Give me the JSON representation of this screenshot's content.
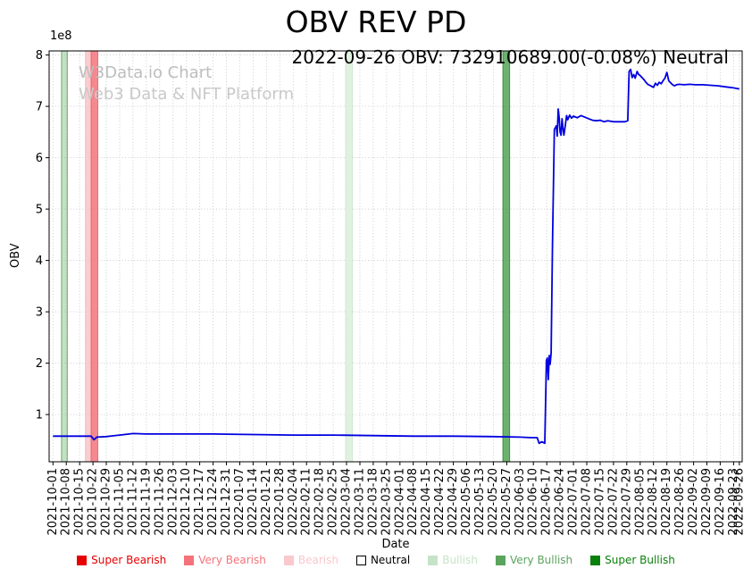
{
  "figure": {
    "title": "OBV REV PD",
    "annotation": "2022-09-26 OBV: 732910689.00(-0.08%) Neutral",
    "watermark_line1": "W3Data.io Chart",
    "watermark_line2": "Web3 Data & NFT Platform",
    "xlabel": "Date",
    "ylabel": "OBV",
    "y_offset_text": "1e8"
  },
  "chart_data": {
    "type": "line",
    "title": "OBV REV PD",
    "xlabel": "Date",
    "ylabel": "OBV",
    "y_scale_factor": "1e8",
    "grid": "dotted",
    "legend_position": "bottom",
    "ylim_e8": [
      0.08,
      8.08
    ],
    "y_ticks_e8": [
      1,
      2,
      3,
      4,
      5,
      6,
      7,
      8
    ],
    "x_origin_date": "2021-10-01",
    "xlim_days": [
      -2,
      361.5
    ],
    "x_tick_labels": [
      "2021-10-01",
      "2021-10-08",
      "2021-10-15",
      "2021-10-22",
      "2021-10-29",
      "2021-11-05",
      "2021-11-12",
      "2021-11-19",
      "2021-11-26",
      "2021-12-03",
      "2021-12-10",
      "2021-12-17",
      "2021-12-24",
      "2021-12-31",
      "2022-01-07",
      "2022-01-14",
      "2022-01-21",
      "2022-01-28",
      "2022-02-04",
      "2022-02-11",
      "2022-02-18",
      "2022-02-25",
      "2022-03-04",
      "2022-03-11",
      "2022-03-18",
      "2022-03-25",
      "2022-04-01",
      "2022-04-08",
      "2022-04-15",
      "2022-04-22",
      "2022-04-29",
      "2022-05-06",
      "2022-05-13",
      "2022-05-20",
      "2022-05-27",
      "2022-06-03",
      "2022-06-10",
      "2022-06-17",
      "2022-06-24",
      "2022-07-01",
      "2022-07-08",
      "2022-07-15",
      "2022-07-22",
      "2022-07-29",
      "2022-08-05",
      "2022-08-12",
      "2022-08-19",
      "2022-08-26",
      "2022-09-02",
      "2022-09-09",
      "2022-09-16",
      "2022-09-23",
      "2022-09-26"
    ],
    "x_tick_days": [
      0,
      7,
      14,
      21,
      28,
      35,
      42,
      49,
      56,
      63,
      70,
      77,
      84,
      91,
      98,
      105,
      112,
      119,
      126,
      133,
      140,
      147,
      154,
      161,
      168,
      175,
      182,
      189,
      196,
      203,
      210,
      217,
      224,
      231,
      238,
      245,
      252,
      259,
      266,
      273,
      280,
      287,
      294,
      301,
      308,
      315,
      322,
      329,
      336,
      343,
      350,
      357,
      360
    ],
    "series": [
      {
        "name": "OBV",
        "color": "#0000e0",
        "points_day_value_e8": [
          [
            0,
            0.58
          ],
          [
            10,
            0.58
          ],
          [
            20,
            0.58
          ],
          [
            21.5,
            0.51
          ],
          [
            23,
            0.56
          ],
          [
            28,
            0.57
          ],
          [
            35,
            0.6
          ],
          [
            42,
            0.63
          ],
          [
            49,
            0.62
          ],
          [
            63,
            0.62
          ],
          [
            84,
            0.62
          ],
          [
            105,
            0.61
          ],
          [
            126,
            0.6
          ],
          [
            147,
            0.6
          ],
          [
            168,
            0.59
          ],
          [
            189,
            0.58
          ],
          [
            210,
            0.58
          ],
          [
            231,
            0.57
          ],
          [
            245,
            0.56
          ],
          [
            251,
            0.55
          ],
          [
            254,
            0.55
          ],
          [
            255,
            0.44
          ],
          [
            256.5,
            0.47
          ],
          [
            258,
            0.44
          ],
          [
            258.8,
            2.05
          ],
          [
            259.3,
            2.1
          ],
          [
            259.8,
            1.68
          ],
          [
            260.3,
            2.15
          ],
          [
            260.8,
            1.98
          ],
          [
            261.3,
            2.2
          ],
          [
            262,
            4.3
          ],
          [
            263,
            6.55
          ],
          [
            264,
            6.62
          ],
          [
            264.5,
            6.42
          ],
          [
            265,
            6.95
          ],
          [
            265.5,
            6.78
          ],
          [
            266,
            6.5
          ],
          [
            266.5,
            6.44
          ],
          [
            267,
            6.76
          ],
          [
            267.5,
            6.58
          ],
          [
            268,
            6.44
          ],
          [
            268.7,
            6.62
          ],
          [
            269.4,
            6.82
          ],
          [
            270,
            6.74
          ],
          [
            271,
            6.83
          ],
          [
            272,
            6.77
          ],
          [
            273,
            6.81
          ],
          [
            275,
            6.78
          ],
          [
            277,
            6.82
          ],
          [
            279,
            6.79
          ],
          [
            281,
            6.76
          ],
          [
            283,
            6.73
          ],
          [
            285,
            6.72
          ],
          [
            287,
            6.73
          ],
          [
            289,
            6.7
          ],
          [
            291,
            6.72
          ],
          [
            294,
            6.7
          ],
          [
            297,
            6.7
          ],
          [
            300,
            6.7
          ],
          [
            301.5,
            6.72
          ],
          [
            302.2,
            7.68
          ],
          [
            303,
            7.72
          ],
          [
            303.8,
            7.56
          ],
          [
            304.6,
            7.62
          ],
          [
            305.4,
            7.55
          ],
          [
            306.4,
            7.68
          ],
          [
            307.2,
            7.62
          ],
          [
            308,
            7.6
          ],
          [
            309,
            7.56
          ],
          [
            310,
            7.52
          ],
          [
            311,
            7.47
          ],
          [
            312,
            7.43
          ],
          [
            313,
            7.41
          ],
          [
            314,
            7.39
          ],
          [
            315,
            7.37
          ],
          [
            316,
            7.45
          ],
          [
            317,
            7.41
          ],
          [
            318,
            7.47
          ],
          [
            319,
            7.44
          ],
          [
            320,
            7.5
          ],
          [
            321,
            7.55
          ],
          [
            322,
            7.66
          ],
          [
            323,
            7.5
          ],
          [
            324,
            7.46
          ],
          [
            325,
            7.42
          ],
          [
            326,
            7.4
          ],
          [
            327,
            7.42
          ],
          [
            328.5,
            7.43
          ],
          [
            331,
            7.42
          ],
          [
            334,
            7.43
          ],
          [
            337,
            7.42
          ],
          [
            341,
            7.42
          ],
          [
            345,
            7.41
          ],
          [
            349,
            7.4
          ],
          [
            353,
            7.38
          ],
          [
            357,
            7.36
          ],
          [
            360,
            7.34
          ]
        ]
      }
    ],
    "bands": [
      {
        "signal": "Bullish",
        "start_day": 4.5,
        "end_day": 7.5,
        "fill": "#8cc48c",
        "opacity": 0.5,
        "edge": "#5ca05c"
      },
      {
        "signal": "Bearish",
        "start_day": 17,
        "end_day": 20,
        "fill": "#f6bcc0",
        "opacity": 0.75,
        "edge": "#f6bcc0"
      },
      {
        "signal": "Very Bearish",
        "start_day": 20,
        "end_day": 23.5,
        "fill": "#f3747b",
        "opacity": 0.85,
        "edge": "#ef5f67"
      },
      {
        "signal": "Bullish",
        "start_day": 153.5,
        "end_day": 157,
        "fill": "#dceedc",
        "opacity": 0.85,
        "edge": "#cfe7cf"
      },
      {
        "signal": "Very Bullish",
        "start_day": 236,
        "end_day": 239.5,
        "fill": "#47a04b",
        "opacity": 0.8,
        "edge": "#358539"
      }
    ]
  },
  "legend": {
    "items": [
      {
        "label": "Super Bearish",
        "fill": "#e60000",
        "border": "#e60000",
        "text": "#e60000"
      },
      {
        "label": "Very Bearish",
        "fill": "#f4737a",
        "border": "#f4737a",
        "text": "#f4737a"
      },
      {
        "label": "Bearish",
        "fill": "#f9c9cd",
        "border": "#f9c9cd",
        "text": "#f9c9cd"
      },
      {
        "label": "Neutral",
        "fill": "#ffffff",
        "border": "#000000",
        "text": "#000000"
      },
      {
        "label": "Bullish",
        "fill": "#c7e3c7",
        "border": "#c7e3c7",
        "text": "#c7e3c7"
      },
      {
        "label": "Very Bullish",
        "fill": "#5aa45d",
        "border": "#5aa45d",
        "text": "#5aa45d"
      },
      {
        "label": "Super Bullish",
        "fill": "#0b800b",
        "border": "#0b800b",
        "text": "#0b800b"
      }
    ]
  }
}
